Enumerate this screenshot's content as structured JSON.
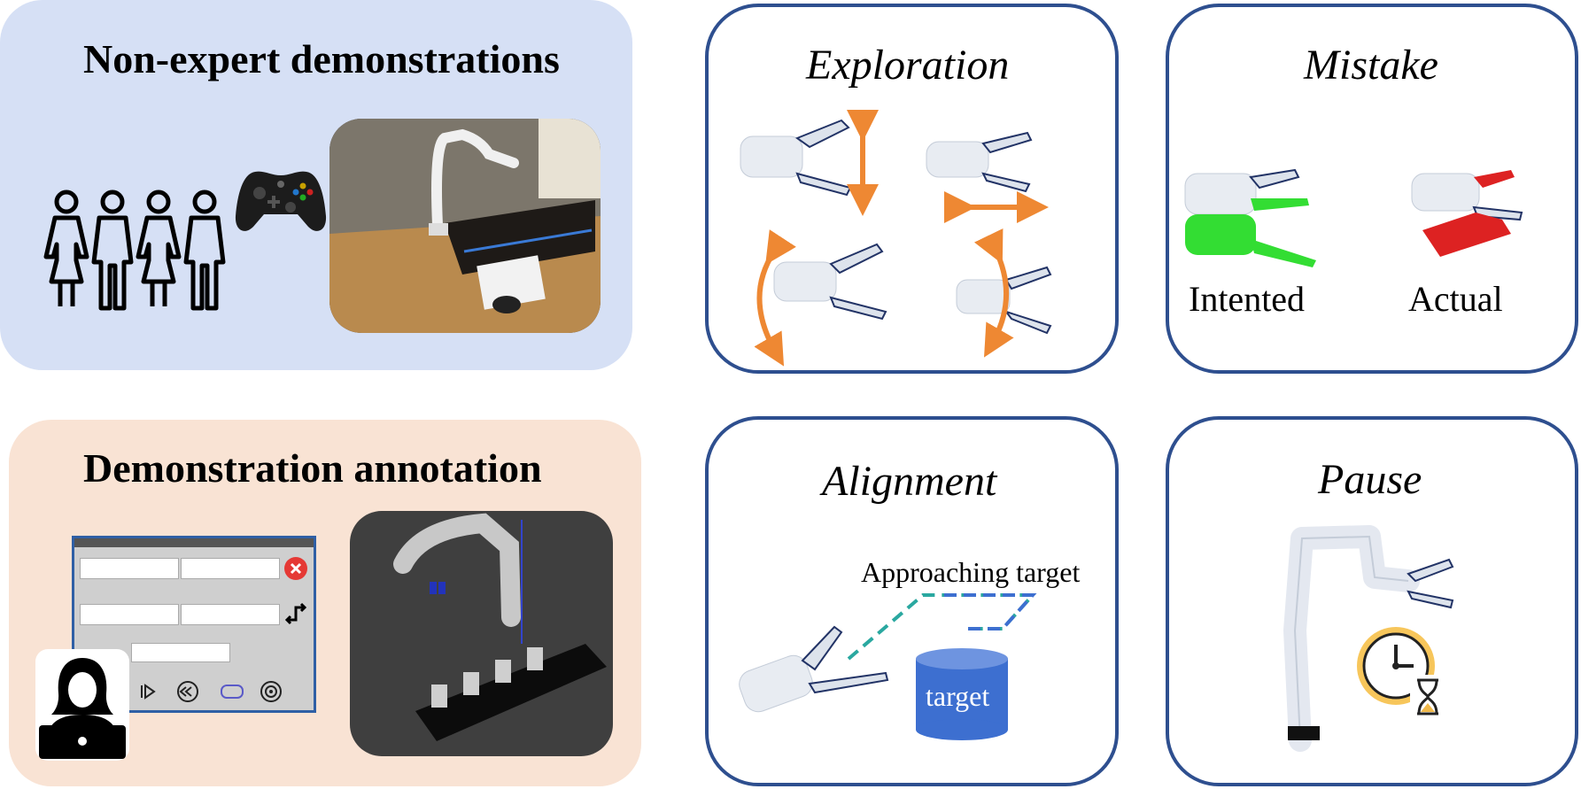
{
  "panels": {
    "demonstrations": {
      "title": "Non-expert demonstrations"
    },
    "annotation": {
      "title": "Demonstration annotation"
    }
  },
  "cards": {
    "exploration": {
      "title": "Exploration"
    },
    "mistake": {
      "title": "Mistake",
      "intended_label": "Intented",
      "actual_label": "Actual"
    },
    "alignment": {
      "title": "Alignment",
      "path_label": "Approaching target",
      "target_label": "target"
    },
    "pause": {
      "title": "Pause"
    }
  },
  "icons": [
    "people-group-icon",
    "gamepad-icon",
    "person-laptop-icon",
    "robot-gripper-icon",
    "clock-icon",
    "hourglass-icon"
  ],
  "colors": {
    "blue_panel": "#d6e0f5",
    "peach_panel": "#f9e3d4",
    "card_border": "#2e4f8f",
    "arrow_orange": "#ee8833",
    "intended_green": "#33dd33",
    "actual_red": "#dd2222",
    "target_blue": "#3d6fd0"
  }
}
